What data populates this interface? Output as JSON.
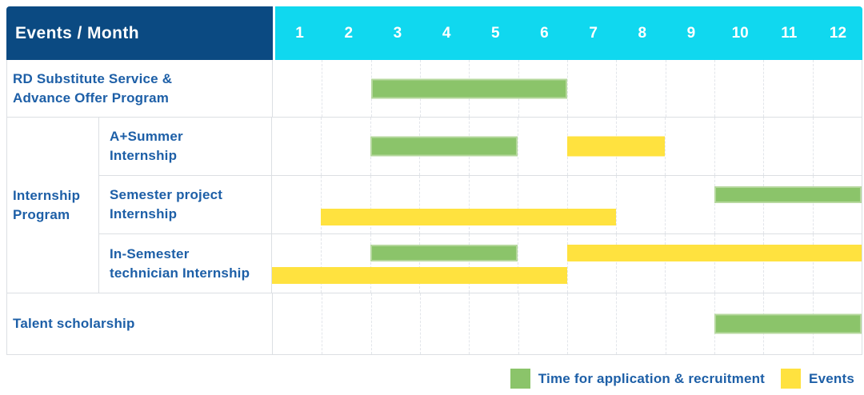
{
  "header": {
    "title": "Events / Month",
    "months": [
      "1",
      "2",
      "3",
      "4",
      "5",
      "6",
      "7",
      "8",
      "9",
      "10",
      "11",
      "12"
    ]
  },
  "colors": {
    "header_bg": "#0b4a82",
    "header_text": "#ffffff",
    "months_bg": "#10d8ef",
    "recruitment": "#8bc46a",
    "recruitment_border": "#b6d89e",
    "event": "#ffe23f",
    "label_text": "#1d5fa7",
    "grid_line": "#e2e5ea",
    "row_border": "#dcdfe3"
  },
  "legend": {
    "items": [
      {
        "key": "recruitment",
        "label": "Time for application & recruitment"
      },
      {
        "key": "event",
        "label": "Events"
      }
    ]
  },
  "chart_data": {
    "type": "gantt",
    "title": "Events / Month",
    "x": {
      "unit": "month",
      "ticks": [
        1,
        2,
        3,
        4,
        5,
        6,
        7,
        8,
        9,
        10,
        11,
        12
      ],
      "range": [
        1,
        12
      ]
    },
    "grid": "dashed-vertical-month-lines",
    "legend_position": "bottom-right",
    "legend": [
      {
        "key": "recruitment",
        "label": "Time for application & recruitment",
        "color": "#8bc46a"
      },
      {
        "key": "event",
        "label": "Events",
        "color": "#ffe23f"
      }
    ],
    "bar_meaning": {
      "recruitment": "Time for application & recruitment",
      "event": "Events"
    },
    "note": "start and end are inclusive month numbers",
    "rows": [
      {
        "label": "RD Substitute Service & Advance Offer Program",
        "lines": [
          "RD Substitute Service &",
          "Advance Offer Program"
        ],
        "tracks": [
          [
            {
              "kind": "recruitment",
              "start": 3,
              "end": 6
            }
          ]
        ]
      },
      {
        "group": "Internship Program",
        "group_lines": [
          "Internship",
          "Program"
        ],
        "label": "A+Summer Internship",
        "lines": [
          "A+Summer",
          "Internship"
        ],
        "tracks": [
          [
            {
              "kind": "recruitment",
              "start": 3,
              "end": 5
            },
            {
              "kind": "event",
              "start": 7,
              "end": 8
            }
          ]
        ]
      },
      {
        "group": "Internship Program",
        "label": "Semester project Internship",
        "lines": [
          "Semester project",
          "Internship"
        ],
        "tracks": [
          [
            {
              "kind": "recruitment",
              "start": 10,
              "end": 12
            }
          ],
          [
            {
              "kind": "event",
              "start": 2,
              "end": 7
            }
          ]
        ]
      },
      {
        "group": "Internship Program",
        "label": "In-Semester technician Internship",
        "lines": [
          "In-Semester",
          "technician Internship"
        ],
        "tracks": [
          [
            {
              "kind": "recruitment",
              "start": 3,
              "end": 5
            },
            {
              "kind": "event",
              "start": 7,
              "end": 12
            }
          ],
          [
            {
              "kind": "event",
              "start": 1,
              "end": 6
            }
          ]
        ]
      },
      {
        "label": "Talent scholarship",
        "lines": [
          "Talent scholarship"
        ],
        "tracks": [
          [
            {
              "kind": "recruitment",
              "start": 10,
              "end": 12
            }
          ]
        ]
      }
    ]
  }
}
